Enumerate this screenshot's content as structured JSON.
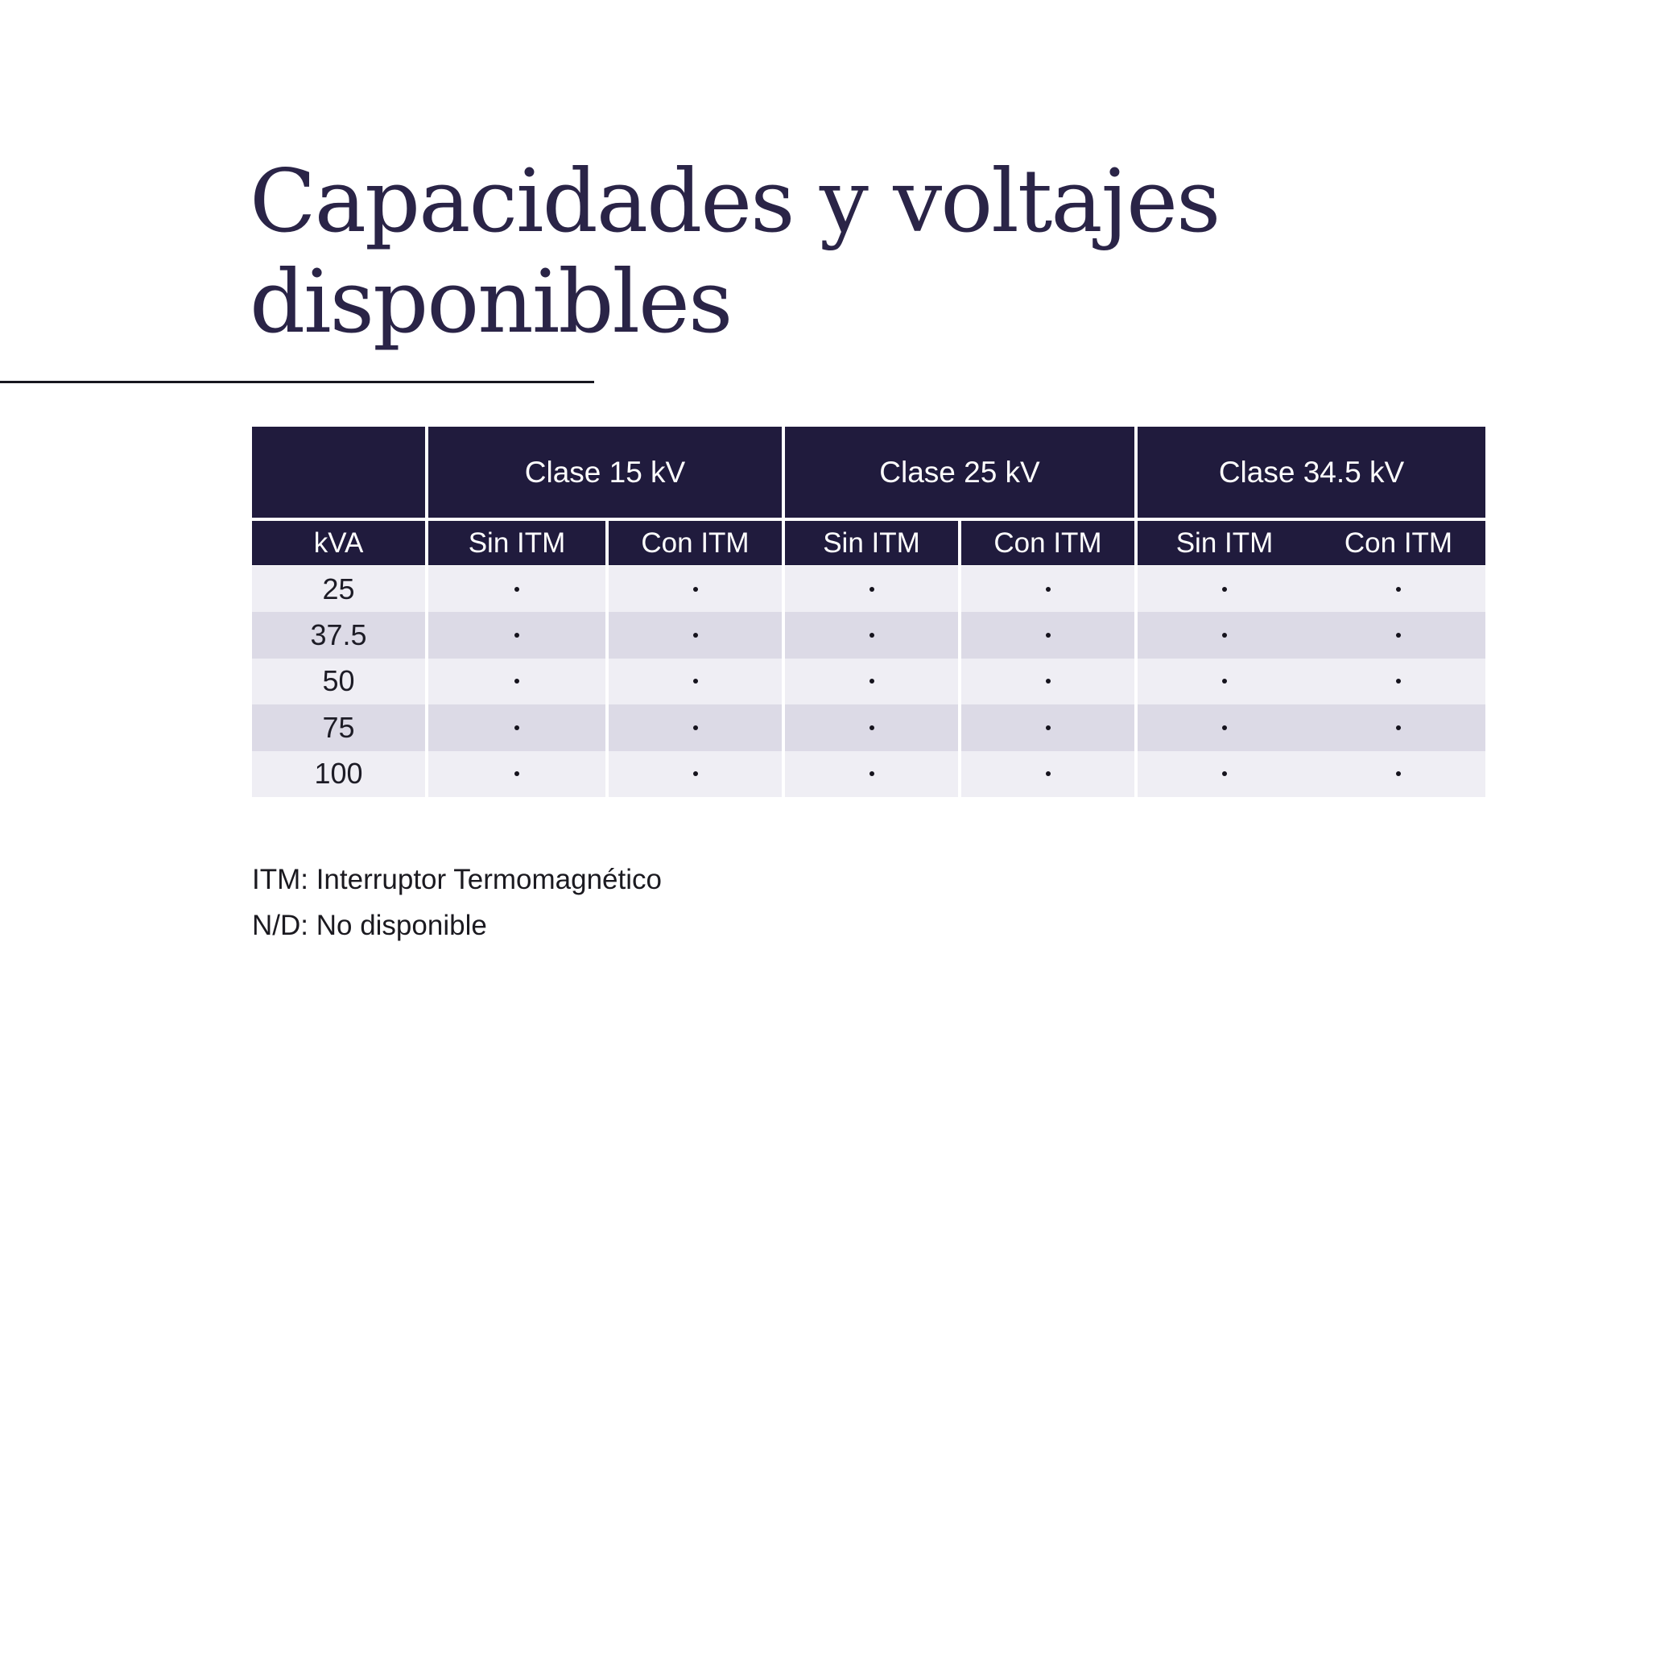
{
  "title": {
    "line1": "Capacidades y voltajes",
    "line2": "disponibles"
  },
  "table": {
    "corner_label": "",
    "groups": [
      {
        "label": "Clase 15 kV"
      },
      {
        "label": "Clase 25 kV"
      },
      {
        "label": "Clase 34.5 kV"
      }
    ],
    "subheaders": {
      "kva": "kVA",
      "sin": "Sin ITM",
      "con": "Con ITM"
    },
    "available_marker": "dot",
    "rows": [
      {
        "kva": "25",
        "available": [
          true,
          true,
          true,
          true,
          true,
          true
        ]
      },
      {
        "kva": "37.5",
        "available": [
          true,
          true,
          true,
          true,
          true,
          true
        ]
      },
      {
        "kva": "50",
        "available": [
          true,
          true,
          true,
          true,
          true,
          true
        ]
      },
      {
        "kva": "75",
        "available": [
          true,
          true,
          true,
          true,
          true,
          true
        ]
      },
      {
        "kva": "100",
        "available": [
          true,
          true,
          true,
          true,
          true,
          true
        ]
      }
    ]
  },
  "footnotes": [
    "ITM: Interruptor Termomagnético",
    "N/D: No disponible"
  ],
  "colors": {
    "header_bg": "#201b3d",
    "title": "#2a2447",
    "row_light": "#efeef4",
    "row_dark": "#dcdae6",
    "dot": "#15131d",
    "rule": "#17171f",
    "footnote": "#1b1a20",
    "page_bg": "#ffffff"
  }
}
